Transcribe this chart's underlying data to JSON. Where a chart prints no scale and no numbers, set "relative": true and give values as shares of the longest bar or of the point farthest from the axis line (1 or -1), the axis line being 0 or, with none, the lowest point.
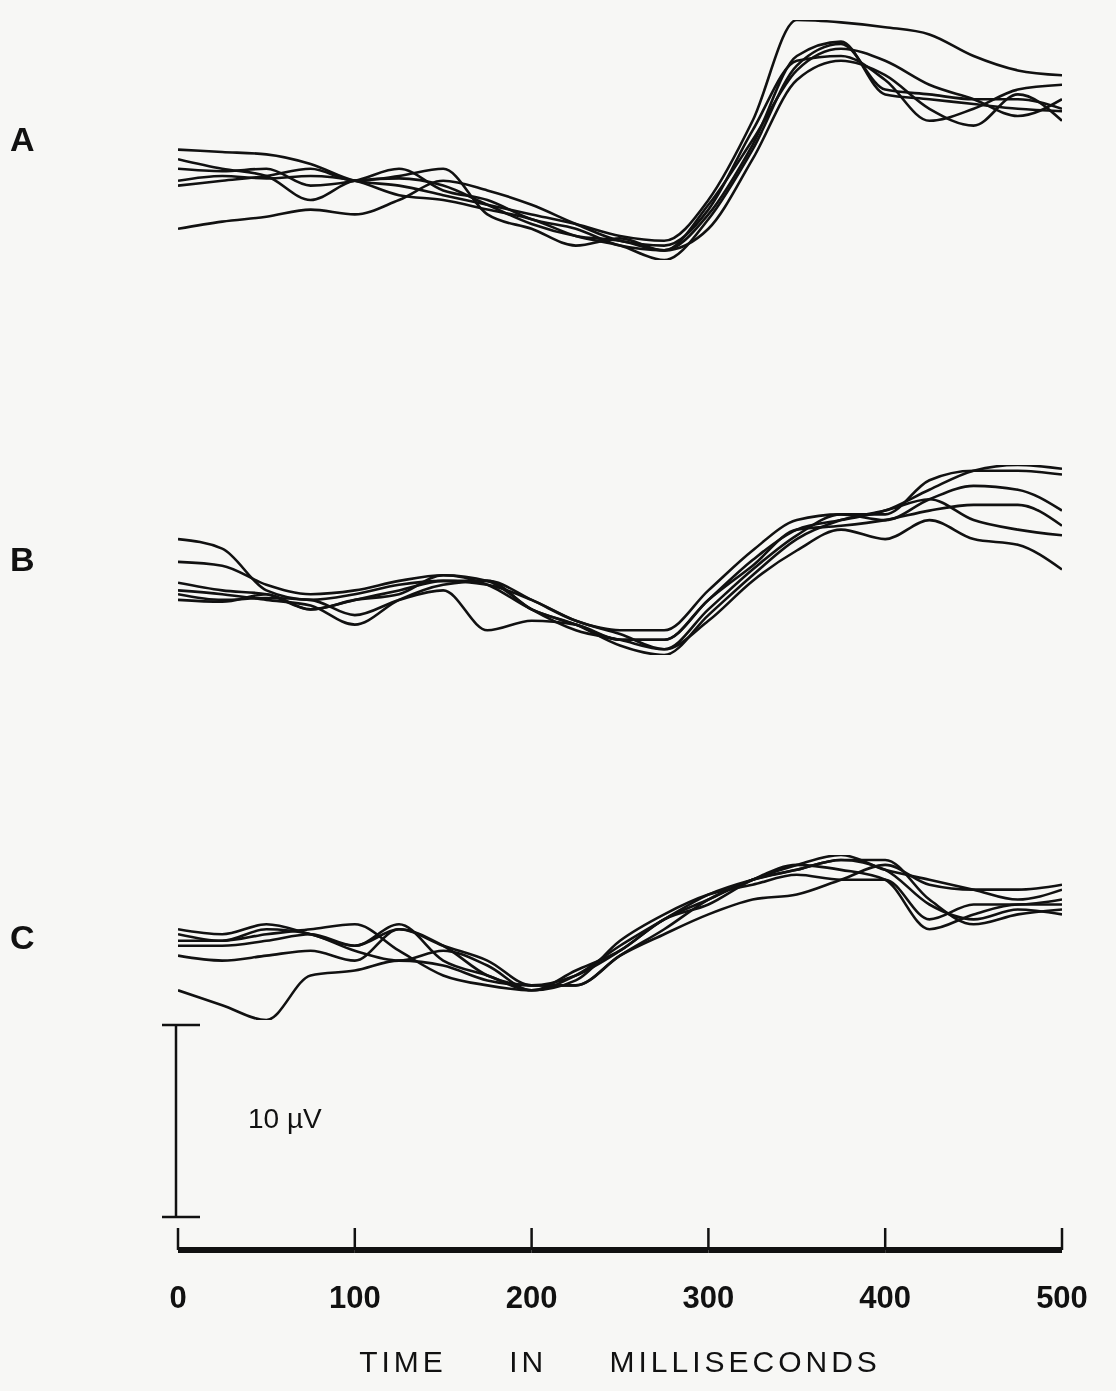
{
  "chart_data": [
    {
      "type": "line",
      "title": "A",
      "relative": true,
      "xlim": [
        0,
        500
      ],
      "tick_labels": false,
      "x": [
        0,
        25,
        50,
        75,
        100,
        125,
        150,
        175,
        200,
        225,
        250,
        275,
        300,
        325,
        350,
        375,
        400,
        425,
        450,
        475,
        500
      ],
      "series": [
        {
          "color": "#111111",
          "values": [
            0.46,
            0.45,
            0.44,
            0.4,
            0.33,
            0.31,
            0.27,
            0.23,
            0.19,
            0.15,
            0.1,
            0.08,
            0.25,
            0.58,
            1.0,
            0.99,
            0.97,
            0.94,
            0.85,
            0.79,
            0.77
          ]
        },
        {
          "color": "#111111",
          "values": [
            0.13,
            0.16,
            0.18,
            0.21,
            0.19,
            0.25,
            0.33,
            0.29,
            0.23,
            0.15,
            0.08,
            0.06,
            0.21,
            0.54,
            0.83,
            0.85,
            0.75,
            0.58,
            0.63,
            0.71,
            0.73
          ]
        },
        {
          "color": "#111111",
          "values": [
            0.38,
            0.37,
            0.38,
            0.31,
            0.33,
            0.38,
            0.29,
            0.25,
            0.17,
            0.13,
            0.06,
            0.04,
            0.23,
            0.5,
            0.79,
            0.88,
            0.83,
            0.73,
            0.67,
            0.6,
            0.67
          ]
        },
        {
          "color": "#111111",
          "values": [
            0.33,
            0.35,
            0.34,
            0.35,
            0.33,
            0.27,
            0.25,
            0.21,
            0.17,
            0.1,
            0.06,
            0,
            0.17,
            0.46,
            0.81,
            0.9,
            0.71,
            0.69,
            0.67,
            0.67,
            0.63
          ]
        },
        {
          "color": "#111111",
          "values": [
            0.42,
            0.38,
            0.35,
            0.25,
            0.33,
            0.34,
            0.31,
            0.23,
            0.15,
            0.1,
            0.08,
            0.04,
            0.19,
            0.48,
            0.85,
            0.91,
            0.69,
            0.67,
            0.65,
            0.63,
            0.62
          ]
        },
        {
          "color": "#111111",
          "values": [
            0.31,
            0.33,
            0.35,
            0.38,
            0.33,
            0.35,
            0.38,
            0.19,
            0.13,
            0.06,
            0.09,
            0.04,
            0.13,
            0.42,
            0.75,
            0.83,
            0.77,
            0.63,
            0.56,
            0.69,
            0.58
          ]
        }
      ]
    },
    {
      "type": "line",
      "title": "B",
      "relative": true,
      "xlim": [
        0,
        500
      ],
      "tick_labels": false,
      "x": [
        0,
        25,
        50,
        75,
        100,
        125,
        150,
        175,
        200,
        225,
        250,
        275,
        300,
        325,
        350,
        375,
        400,
        425,
        450,
        475,
        500
      ],
      "series": [
        {
          "color": "#111111",
          "values": [
            0.61,
            0.56,
            0.34,
            0.29,
            0.32,
            0.37,
            0.39,
            0.39,
            0.29,
            0.18,
            0.13,
            0.13,
            0.34,
            0.55,
            0.71,
            0.74,
            0.74,
            0.92,
            0.97,
            0.97,
            0.95
          ]
        },
        {
          "color": "#111111",
          "values": [
            0.49,
            0.47,
            0.37,
            0.32,
            0.34,
            0.39,
            0.42,
            0.37,
            0.24,
            0.16,
            0.08,
            0.08,
            0.29,
            0.5,
            0.66,
            0.71,
            0.76,
            0.87,
            0.97,
            1.0,
            0.98
          ]
        },
        {
          "color": "#111111",
          "values": [
            0.38,
            0.34,
            0.32,
            0.24,
            0.29,
            0.34,
            0.39,
            0.37,
            0.29,
            0.18,
            0.11,
            0.03,
            0.24,
            0.45,
            0.63,
            0.74,
            0.71,
            0.82,
            0.89,
            0.87,
            0.76
          ]
        },
        {
          "color": "#111111",
          "values": [
            0.34,
            0.32,
            0.29,
            0.26,
            0.16,
            0.29,
            0.37,
            0.39,
            0.24,
            0.16,
            0.05,
            0,
            0.21,
            0.42,
            0.61,
            0.71,
            0.76,
            0.82,
            0.71,
            0.66,
            0.63
          ]
        },
        {
          "color": "#111111",
          "values": [
            0.32,
            0.29,
            0.3,
            0.29,
            0.21,
            0.29,
            0.34,
            0.13,
            0.18,
            0.16,
            0.08,
            0.08,
            0.29,
            0.47,
            0.66,
            0.68,
            0.71,
            0.76,
            0.79,
            0.79,
            0.68
          ]
        },
        {
          "color": "#111111",
          "values": [
            0.29,
            0.28,
            0.32,
            0.24,
            0.29,
            0.32,
            0.42,
            0.39,
            0.24,
            0.13,
            0.08,
            0.03,
            0.18,
            0.39,
            0.55,
            0.66,
            0.61,
            0.71,
            0.61,
            0.58,
            0.45
          ]
        }
      ]
    },
    {
      "type": "line",
      "title": "C",
      "relative": true,
      "xlim": [
        0,
        500
      ],
      "xticks": [
        0,
        100,
        200,
        300,
        400,
        500
      ],
      "xlabel": "TIME IN MILLISECONDS",
      "annotations": [
        "10 µV"
      ],
      "x": [
        0,
        25,
        50,
        75,
        100,
        125,
        150,
        175,
        200,
        225,
        250,
        275,
        300,
        325,
        350,
        375,
        400,
        425,
        450,
        475,
        500
      ],
      "series": [
        {
          "color": "#111111",
          "values": [
            0.18,
            0.09,
            0,
            0.27,
            0.3,
            0.36,
            0.33,
            0.24,
            0.21,
            0.27,
            0.42,
            0.61,
            0.73,
            0.85,
            0.91,
            0.97,
            0.97,
            0.73,
            0.58,
            0.64,
            0.67
          ]
        },
        {
          "color": "#111111",
          "values": [
            0.39,
            0.36,
            0.39,
            0.42,
            0.36,
            0.55,
            0.45,
            0.27,
            0.21,
            0.21,
            0.39,
            0.55,
            0.73,
            0.85,
            0.94,
            1.0,
            0.91,
            0.85,
            0.79,
            0.73,
            0.79
          ]
        },
        {
          "color": "#111111",
          "values": [
            0.45,
            0.45,
            0.48,
            0.52,
            0.45,
            0.58,
            0.36,
            0.27,
            0.18,
            0.3,
            0.42,
            0.61,
            0.7,
            0.85,
            0.94,
            0.91,
            0.85,
            0.55,
            0.64,
            0.7,
            0.7
          ]
        },
        {
          "color": "#111111",
          "values": [
            0.48,
            0.48,
            0.52,
            0.55,
            0.58,
            0.42,
            0.27,
            0.21,
            0.18,
            0.27,
            0.45,
            0.61,
            0.76,
            0.85,
            0.91,
            0.97,
            0.91,
            0.7,
            0.61,
            0.67,
            0.64
          ]
        },
        {
          "color": "#111111",
          "values": [
            0.52,
            0.48,
            0.55,
            0.52,
            0.42,
            0.36,
            0.42,
            0.33,
            0.18,
            0.24,
            0.48,
            0.64,
            0.76,
            0.82,
            0.88,
            0.85,
            0.85,
            0.61,
            0.7,
            0.7,
            0.73
          ]
        },
        {
          "color": "#111111",
          "values": [
            0.55,
            0.52,
            0.58,
            0.52,
            0.45,
            0.55,
            0.45,
            0.36,
            0.21,
            0.21,
            0.39,
            0.52,
            0.64,
            0.73,
            0.76,
            0.85,
            0.94,
            0.82,
            0.79,
            0.79,
            0.82
          ]
        }
      ]
    }
  ]
}
